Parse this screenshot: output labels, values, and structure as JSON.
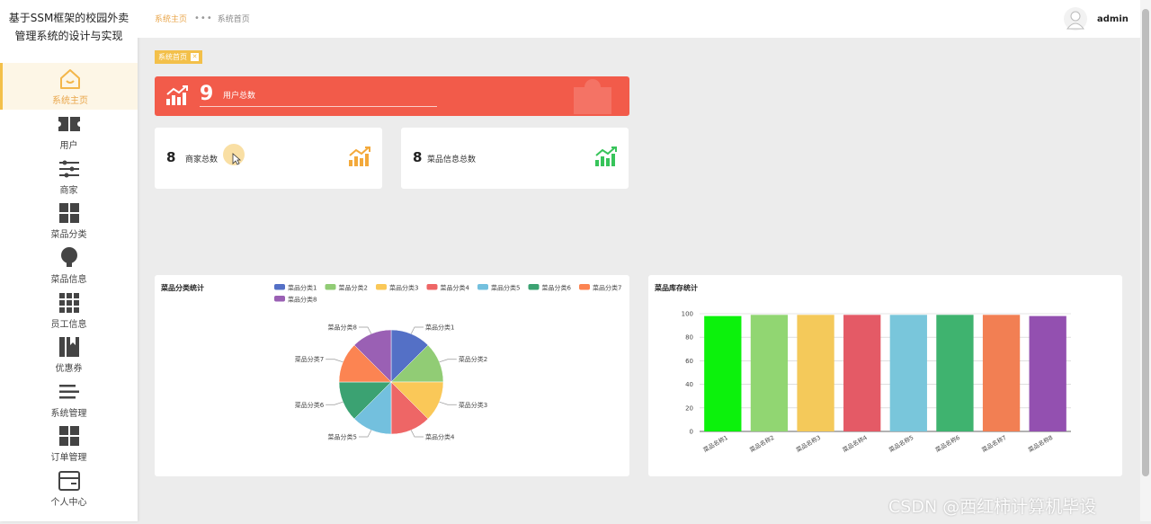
{
  "sidebar": {
    "brand_line1": "基于SSM框架的校园外卖",
    "brand_line2": "管理系统的设计与实现",
    "items": [
      {
        "label": "系统主页",
        "icon": "home-icon"
      },
      {
        "label": "用户",
        "icon": "ticket-icon"
      },
      {
        "label": "商家",
        "icon": "sliders-icon"
      },
      {
        "label": "菜品分类",
        "icon": "grid-icon"
      },
      {
        "label": "菜品信息",
        "icon": "bulb-icon"
      },
      {
        "label": "员工信息",
        "icon": "apps-icon"
      },
      {
        "label": "优惠券",
        "icon": "book-icon"
      },
      {
        "label": "系统管理",
        "icon": "list-icon"
      },
      {
        "label": "订单管理",
        "icon": "grid-icon"
      },
      {
        "label": "个人中心",
        "icon": "card-icon"
      }
    ]
  },
  "header": {
    "breadcrumb_root": "系统主页",
    "breadcrumb_current": "系统首页",
    "username": "admin"
  },
  "tag": {
    "label": "系统首页"
  },
  "stats": {
    "users": {
      "value": "9",
      "label": "用户总数"
    },
    "merchants": {
      "value": "8",
      "label": "商家总数"
    },
    "dishes": {
      "value": "8",
      "label": "菜品信息总数"
    }
  },
  "colors": {
    "accent": "#f3c04a",
    "banner": "#f25b4a",
    "stat_icon_orange": "#f3a93b",
    "stat_icon_green": "#37c45a"
  },
  "chart_data": [
    {
      "type": "pie",
      "title": "菜品分类统计",
      "legend_position": "top",
      "categories": [
        "菜品分类1",
        "菜品分类2",
        "菜品分类3",
        "菜品分类4",
        "菜品分类5",
        "菜品分类6",
        "菜品分类7",
        "菜品分类8"
      ],
      "values": [
        1,
        1,
        1,
        1,
        1,
        1,
        1,
        1
      ],
      "colors": [
        "#5470c6",
        "#91cc75",
        "#fac858",
        "#ee6666",
        "#73c0de",
        "#3ba272",
        "#fc8452",
        "#9a60b4"
      ]
    },
    {
      "type": "bar",
      "title": "菜品库存统计",
      "categories": [
        "菜品名称1",
        "菜品名称2",
        "菜品名称3",
        "菜品名称4",
        "菜品名称5",
        "菜品名称6",
        "菜品名称7",
        "菜品名称8"
      ],
      "values": [
        98,
        99,
        99,
        99,
        99,
        99,
        99,
        98
      ],
      "ylim": [
        0,
        100
      ],
      "yticks": [
        "0",
        "20",
        "40",
        "60",
        "80",
        "100"
      ],
      "grid": true,
      "colors": [
        "#0cf20c",
        "#91d672",
        "#f4c95a",
        "#e45a66",
        "#79c6db",
        "#3fb36f",
        "#f27f53",
        "#9350b0"
      ]
    }
  ],
  "watermark": "CSDN @西红柿计算机毕设"
}
